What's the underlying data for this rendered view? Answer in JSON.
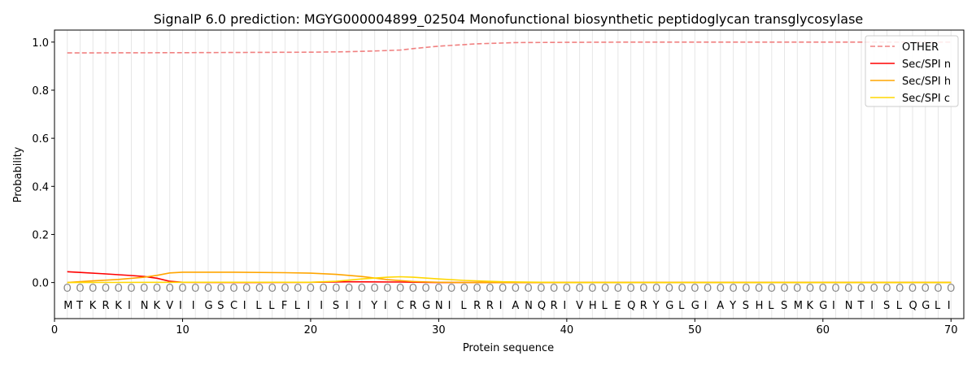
{
  "chart_data": {
    "type": "line",
    "title": "SignalP 6.0 prediction: MGYG000004899_02504 Monofunctional biosynthetic peptidoglycan transglycosylase",
    "xlabel": "Protein sequence",
    "ylabel": "Probability",
    "xlim": [
      0,
      71
    ],
    "ylim": [
      -0.15,
      1.05
    ],
    "xticks": [
      0,
      10,
      20,
      30,
      40,
      50,
      60,
      70
    ],
    "yticks": [
      0.0,
      0.2,
      0.4,
      0.6,
      0.8,
      1.0
    ],
    "grid": "vertical lines at each residue",
    "legend_position": "top-right",
    "sequence": "MTKRKINKVIIGSCILLFLIISIIYICRGNILRRIANQRIVHLEQRYGLGIAYSHLSMKGINTISLQGLI",
    "region_label": "O",
    "series": [
      {
        "name": "OTHER",
        "color": "#f08080",
        "dash": true,
        "points": [
          [
            1,
            0.955
          ],
          [
            10,
            0.956
          ],
          [
            20,
            0.958
          ],
          [
            23,
            0.96
          ],
          [
            25,
            0.963
          ],
          [
            27,
            0.967
          ],
          [
            28,
            0.973
          ],
          [
            30,
            0.983
          ],
          [
            33,
            0.993
          ],
          [
            36,
            0.998
          ],
          [
            40,
            0.999
          ],
          [
            45,
            1.0
          ],
          [
            70,
            1.0
          ]
        ]
      },
      {
        "name": "Sec/SPI n",
        "color": "#ff0000",
        "dash": false,
        "points": [
          [
            1,
            0.045
          ],
          [
            2,
            0.042
          ],
          [
            4,
            0.036
          ],
          [
            6,
            0.029
          ],
          [
            7,
            0.025
          ],
          [
            8,
            0.018
          ],
          [
            9,
            0.005
          ],
          [
            10,
            0.001
          ],
          [
            15,
            0.0
          ],
          [
            20,
            0.001
          ],
          [
            23,
            0.003
          ],
          [
            27,
            0.002
          ],
          [
            30,
            0.0
          ],
          [
            70,
            0.0
          ]
        ]
      },
      {
        "name": "Sec/SPI h",
        "color": "#ffa500",
        "dash": false,
        "points": [
          [
            1,
            0.0
          ],
          [
            3,
            0.007
          ],
          [
            5,
            0.013
          ],
          [
            7,
            0.022
          ],
          [
            8,
            0.03
          ],
          [
            9,
            0.04
          ],
          [
            10,
            0.043
          ],
          [
            14,
            0.043
          ],
          [
            18,
            0.041
          ],
          [
            20,
            0.039
          ],
          [
            22,
            0.034
          ],
          [
            24,
            0.025
          ],
          [
            26,
            0.012
          ],
          [
            28,
            0.004
          ],
          [
            30,
            0.001
          ],
          [
            32,
            0.0
          ],
          [
            70,
            0.0
          ]
        ]
      },
      {
        "name": "Sec/SPI c",
        "color": "#ffd700",
        "dash": false,
        "points": [
          [
            1,
            0.0
          ],
          [
            10,
            0.001
          ],
          [
            20,
            0.001
          ],
          [
            22,
            0.005
          ],
          [
            24,
            0.015
          ],
          [
            26,
            0.022
          ],
          [
            27,
            0.024
          ],
          [
            28,
            0.022
          ],
          [
            30,
            0.015
          ],
          [
            32,
            0.009
          ],
          [
            35,
            0.003
          ],
          [
            38,
            0.001
          ],
          [
            40,
            0.0
          ],
          [
            70,
            0.0
          ]
        ]
      }
    ]
  }
}
